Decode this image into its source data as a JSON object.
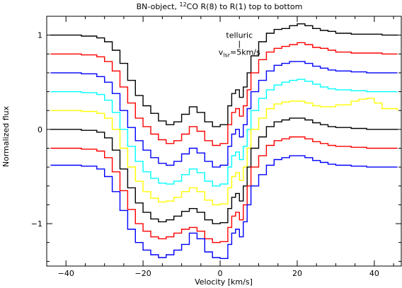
{
  "chart_data": {
    "type": "line",
    "title_main": "BN-object, ",
    "title_super": "12",
    "title_rest": "CO R(8) to R(1) top to bottom",
    "xlabel": "Velocity [km/s]",
    "ylabel": "Normalized flux",
    "xlim": [
      -45,
      47
    ],
    "ylim": [
      -1.45,
      1.2
    ],
    "xticks": [
      -40,
      -20,
      0,
      20,
      40
    ],
    "xtick_labels": [
      "−40",
      "−20",
      "0",
      "20",
      "40"
    ],
    "yticks": [
      -1,
      0,
      1
    ],
    "ytick_labels": [
      "−1",
      "0",
      "1"
    ],
    "grid": false,
    "step_plot": true,
    "annotations": {
      "telluric": {
        "text": "telluric",
        "x": 5.0,
        "y": 0.97
      },
      "vlsr": {
        "text_main": "v",
        "text_sub": "lsr",
        "text_rest": "=5km/s",
        "x": 5.0,
        "y": 0.79
      }
    },
    "series": [
      {
        "color": "#000000",
        "offset": 1.0,
        "x": [
          -44,
          -40,
          -36,
          -32,
          -30,
          -28,
          -26,
          -24,
          -22,
          -20,
          -18,
          -16,
          -14,
          -12,
          -10,
          -8,
          -6,
          -4,
          -2,
          0,
          2,
          3,
          4,
          5,
          6,
          7,
          8,
          10,
          12,
          14,
          16,
          18,
          20,
          22,
          24,
          26,
          28,
          30,
          34,
          38,
          42,
          46
        ],
        "y": [
          1.0,
          1.0,
          0.99,
          0.97,
          0.93,
          0.84,
          0.7,
          0.52,
          0.36,
          0.25,
          0.17,
          0.09,
          0.05,
          0.08,
          0.16,
          0.24,
          0.18,
          0.08,
          0.03,
          0.05,
          0.25,
          0.38,
          0.42,
          0.34,
          0.45,
          0.6,
          0.78,
          0.93,
          1.02,
          1.06,
          1.07,
          1.1,
          1.12,
          1.1,
          1.07,
          1.05,
          1.04,
          1.02,
          1.01,
          1.01,
          1.0,
          1.0
        ]
      },
      {
        "color": "#ff0000",
        "offset": 0.8,
        "x": [
          -44,
          -40,
          -36,
          -32,
          -30,
          -28,
          -26,
          -24,
          -22,
          -20,
          -18,
          -16,
          -14,
          -12,
          -10,
          -8,
          -6,
          -4,
          -2,
          0,
          2,
          3,
          4,
          5,
          6,
          7,
          8,
          10,
          12,
          14,
          16,
          18,
          20,
          22,
          24,
          26,
          28,
          30,
          34,
          38,
          42,
          46
        ],
        "y": [
          0.8,
          0.8,
          0.79,
          0.77,
          0.72,
          0.62,
          0.45,
          0.28,
          0.12,
          0.03,
          -0.05,
          -0.11,
          -0.15,
          -0.12,
          -0.05,
          0.03,
          -0.02,
          -0.12,
          -0.17,
          -0.15,
          0.05,
          0.18,
          0.22,
          0.14,
          0.25,
          0.42,
          0.6,
          0.74,
          0.82,
          0.86,
          0.88,
          0.9,
          0.92,
          0.9,
          0.87,
          0.86,
          0.84,
          0.82,
          0.81,
          0.81,
          0.8,
          0.8
        ]
      },
      {
        "color": "#0000ff",
        "offset": 0.6,
        "x": [
          -44,
          -40,
          -36,
          -32,
          -30,
          -28,
          -26,
          -24,
          -22,
          -20,
          -18,
          -16,
          -14,
          -12,
          -10,
          -8,
          -6,
          -4,
          -2,
          0,
          2,
          3,
          4,
          5,
          6,
          7,
          8,
          10,
          12,
          14,
          16,
          18,
          20,
          22,
          24,
          26,
          28,
          30,
          34,
          38,
          42,
          46
        ],
        "y": [
          0.6,
          0.6,
          0.59,
          0.56,
          0.5,
          0.38,
          0.2,
          0.02,
          -0.12,
          -0.22,
          -0.3,
          -0.36,
          -0.38,
          -0.34,
          -0.26,
          -0.2,
          -0.25,
          -0.34,
          -0.4,
          -0.38,
          -0.18,
          -0.05,
          0.0,
          -0.08,
          0.05,
          0.22,
          0.4,
          0.52,
          0.62,
          0.68,
          0.7,
          0.72,
          0.72,
          0.7,
          0.67,
          0.65,
          0.63,
          0.62,
          0.61,
          0.6,
          0.6,
          0.6
        ]
      },
      {
        "color": "#00ffff",
        "offset": 0.4,
        "x": [
          -44,
          -40,
          -36,
          -32,
          -30,
          -28,
          -26,
          -24,
          -22,
          -20,
          -18,
          -16,
          -14,
          -12,
          -10,
          -8,
          -6,
          -4,
          -2,
          0,
          2,
          3,
          4,
          5,
          6,
          7,
          8,
          10,
          12,
          14,
          16,
          18,
          20,
          22,
          24,
          26,
          28,
          30,
          34,
          38,
          42,
          46
        ],
        "y": [
          0.4,
          0.4,
          0.39,
          0.37,
          0.31,
          0.18,
          0.0,
          -0.18,
          -0.34,
          -0.45,
          -0.52,
          -0.57,
          -0.58,
          -0.55,
          -0.48,
          -0.42,
          -0.46,
          -0.55,
          -0.6,
          -0.58,
          -0.4,
          -0.28,
          -0.24,
          -0.32,
          -0.18,
          0.0,
          0.2,
          0.33,
          0.42,
          0.47,
          0.5,
          0.52,
          0.53,
          0.51,
          0.48,
          0.45,
          0.43,
          0.42,
          0.41,
          0.4,
          0.4,
          0.4
        ]
      },
      {
        "color": "#ffff00",
        "offset": 0.2,
        "x": [
          -44,
          -40,
          -36,
          -32,
          -30,
          -28,
          -26,
          -24,
          -22,
          -20,
          -18,
          -16,
          -14,
          -12,
          -10,
          -8,
          -6,
          -4,
          -2,
          0,
          2,
          3,
          4,
          5,
          6,
          7,
          8,
          10,
          12,
          14,
          16,
          18,
          20,
          22,
          24,
          26,
          28,
          30,
          34,
          36,
          38,
          40,
          42,
          46
        ],
        "y": [
          0.2,
          0.2,
          0.19,
          0.17,
          0.12,
          0.0,
          -0.2,
          -0.4,
          -0.55,
          -0.66,
          -0.73,
          -0.77,
          -0.76,
          -0.72,
          -0.66,
          -0.62,
          -0.66,
          -0.75,
          -0.8,
          -0.79,
          -0.62,
          -0.5,
          -0.46,
          -0.54,
          -0.4,
          -0.2,
          0.0,
          0.12,
          0.22,
          0.27,
          0.29,
          0.3,
          0.3,
          0.28,
          0.25,
          0.24,
          0.24,
          0.26,
          0.3,
          0.32,
          0.33,
          0.28,
          0.22,
          0.2
        ]
      },
      {
        "color": "#000000",
        "offset": 0.0,
        "x": [
          -44,
          -40,
          -36,
          -32,
          -30,
          -28,
          -26,
          -24,
          -22,
          -20,
          -18,
          -16,
          -14,
          -12,
          -10,
          -8,
          -6,
          -4,
          -2,
          0,
          2,
          3,
          4,
          5,
          6,
          7,
          8,
          10,
          12,
          14,
          16,
          18,
          20,
          22,
          24,
          26,
          28,
          30,
          34,
          38,
          42,
          46
        ],
        "y": [
          0.0,
          0.0,
          -0.01,
          -0.03,
          -0.09,
          -0.22,
          -0.42,
          -0.62,
          -0.78,
          -0.88,
          -0.95,
          -0.98,
          -0.96,
          -0.92,
          -0.87,
          -0.84,
          -0.88,
          -0.96,
          -1.0,
          -0.99,
          -0.84,
          -0.72,
          -0.68,
          -0.76,
          -0.6,
          -0.4,
          -0.2,
          -0.08,
          0.03,
          0.08,
          0.1,
          0.12,
          0.12,
          0.1,
          0.07,
          0.05,
          0.03,
          0.02,
          0.01,
          0.0,
          0.0,
          0.0
        ]
      },
      {
        "color": "#ff0000",
        "offset": -0.2,
        "x": [
          -44,
          -40,
          -36,
          -32,
          -30,
          -28,
          -26,
          -24,
          -22,
          -20,
          -18,
          -16,
          -14,
          -12,
          -10,
          -8,
          -6,
          -4,
          -2,
          0,
          2,
          3,
          4,
          5,
          6,
          7,
          8,
          10,
          12,
          14,
          16,
          18,
          20,
          22,
          24,
          26,
          28,
          30,
          34,
          38,
          42,
          46
        ],
        "y": [
          -0.2,
          -0.2,
          -0.21,
          -0.23,
          -0.3,
          -0.45,
          -0.65,
          -0.85,
          -1.0,
          -1.08,
          -1.14,
          -1.16,
          -1.14,
          -1.1,
          -1.06,
          -1.04,
          -1.08,
          -1.16,
          -1.2,
          -1.19,
          -1.04,
          -0.92,
          -0.88,
          -0.96,
          -0.8,
          -0.6,
          -0.4,
          -0.28,
          -0.17,
          -0.12,
          -0.1,
          -0.08,
          -0.08,
          -0.1,
          -0.13,
          -0.15,
          -0.17,
          -0.18,
          -0.19,
          -0.2,
          -0.2,
          -0.2
        ]
      },
      {
        "color": "#0000ff",
        "offset": -0.4,
        "x": [
          -44,
          -40,
          -36,
          -32,
          -30,
          -28,
          -26,
          -24,
          -22,
          -20,
          -18,
          -16,
          -14,
          -12,
          -10,
          -8,
          -6,
          -4,
          -2,
          0,
          2,
          3,
          4,
          5,
          6,
          7,
          8,
          10,
          12,
          14,
          16,
          18,
          20,
          22,
          24,
          26,
          28,
          30,
          34,
          38,
          42,
          46
        ],
        "y": [
          -0.38,
          -0.38,
          -0.39,
          -0.42,
          -0.5,
          -0.66,
          -0.86,
          -1.06,
          -1.2,
          -1.28,
          -1.33,
          -1.36,
          -1.33,
          -1.28,
          -1.22,
          -1.1,
          -1.16,
          -1.3,
          -1.36,
          -1.37,
          -1.22,
          -1.1,
          -1.06,
          -1.14,
          -0.98,
          -0.8,
          -0.6,
          -0.48,
          -0.38,
          -0.32,
          -0.3,
          -0.28,
          -0.28,
          -0.3,
          -0.33,
          -0.35,
          -0.37,
          -0.38,
          -0.39,
          -0.4,
          -0.4,
          -0.4
        ]
      }
    ]
  }
}
